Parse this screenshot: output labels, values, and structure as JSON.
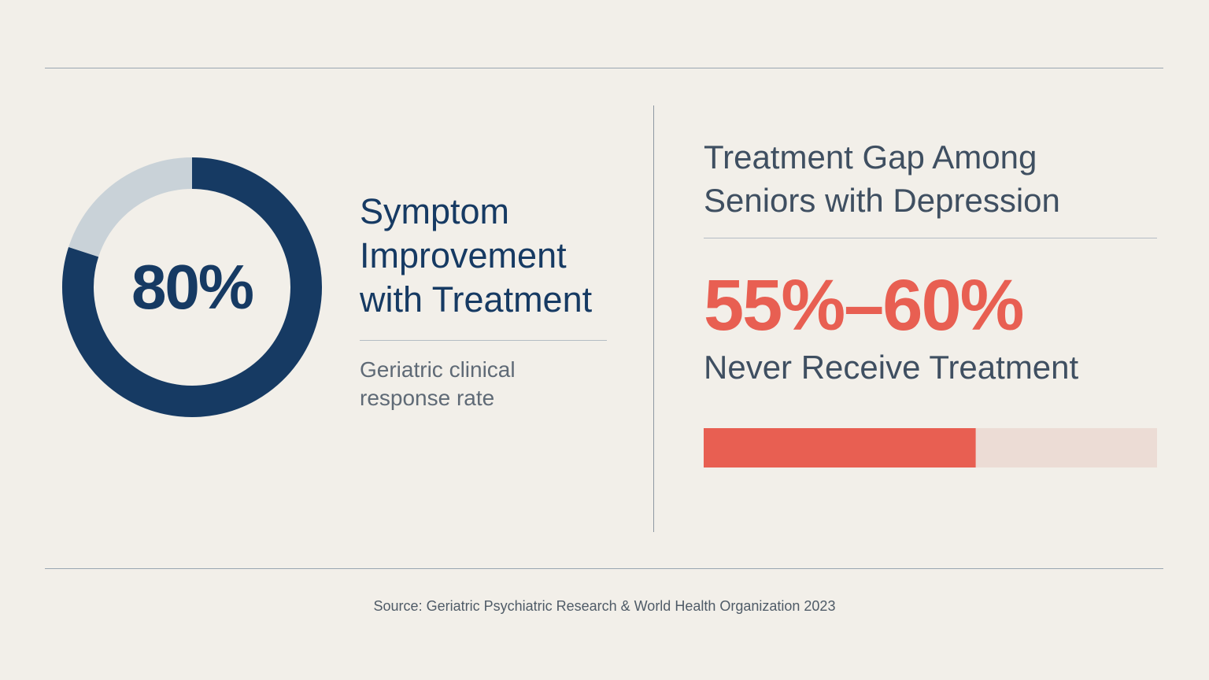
{
  "colors": {
    "navy": "#163a63",
    "light_ring": "#c9d2d8",
    "coral": "#e85f52",
    "bar_track": "#ecdcd5"
  },
  "left": {
    "value_label": "80%",
    "title": "Symptom Improvement with Treatment",
    "subtitle": "Geriatric clinical response rate"
  },
  "right": {
    "title": "Treatment Gap Among Seniors with Depression",
    "value_label": "55%–60%",
    "label": "Never Receive Treatment"
  },
  "source": "Source: Geriatric Psychiatric Research & World Health Organization 2023",
  "chart_data": [
    {
      "type": "pie",
      "variant": "donut",
      "title": "Symptom Improvement with Treatment",
      "values": [
        80,
        20
      ],
      "unit": "%",
      "start_angle": "top",
      "direction": "clockwise"
    },
    {
      "type": "bar",
      "orientation": "horizontal",
      "title": "Treatment Gap Among Seniors with Depression",
      "values": [
        60
      ],
      "range_label": "55%–60%",
      "xlim": [
        0,
        100
      ],
      "unit": "%"
    }
  ]
}
